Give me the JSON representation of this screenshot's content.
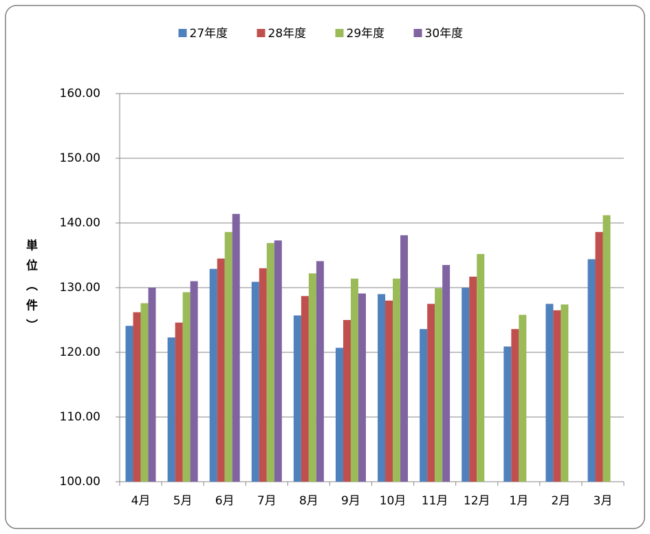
{
  "chart_data": {
    "type": "bar",
    "y_label": "単位（件）",
    "categories": [
      "4月",
      "5月",
      "6月",
      "7月",
      "8月",
      "9月",
      "10月",
      "11月",
      "12月",
      "1月",
      "2月",
      "3月"
    ],
    "series": [
      {
        "name": "27年度",
        "color": "#4f81bd",
        "values": [
          124.1,
          122.3,
          132.9,
          130.9,
          125.7,
          120.7,
          129.0,
          123.6,
          130.0,
          120.9,
          127.5,
          134.4
        ]
      },
      {
        "name": "28年度",
        "color": "#c0504d",
        "values": [
          126.2,
          124.6,
          134.5,
          133.0,
          128.7,
          125.0,
          128.0,
          127.5,
          131.7,
          123.6,
          126.5,
          138.6
        ]
      },
      {
        "name": "29年度",
        "color": "#9bbb59",
        "values": [
          127.6,
          129.3,
          138.6,
          136.9,
          132.2,
          131.4,
          131.4,
          129.9,
          135.2,
          125.8,
          127.4,
          141.2
        ]
      },
      {
        "name": "30年度",
        "color": "#8064a2",
        "values": [
          130.0,
          131.0,
          141.4,
          137.3,
          134.1,
          129.1,
          138.1,
          133.5,
          null,
          null,
          null,
          null
        ]
      }
    ],
    "ylim": [
      100,
      160
    ],
    "yticks": [
      {
        "value": 100,
        "label": "100.00"
      },
      {
        "value": 110,
        "label": "110.00"
      },
      {
        "value": 120,
        "label": "120.00"
      },
      {
        "value": 130,
        "label": "130.00"
      },
      {
        "value": 140,
        "label": "140.00"
      },
      {
        "value": 150,
        "label": "150.00"
      },
      {
        "value": 160,
        "label": "160.00"
      }
    ],
    "grid": true,
    "legend": "top"
  }
}
